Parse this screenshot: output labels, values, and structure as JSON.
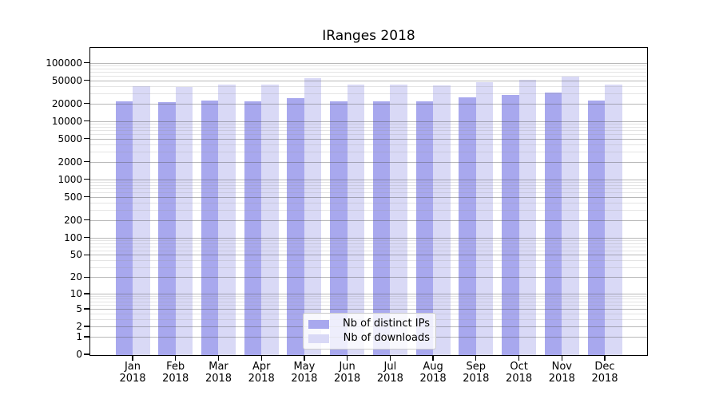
{
  "title": "IRanges 2018",
  "chart_data": {
    "type": "bar",
    "title": "IRanges 2018",
    "x_months": [
      "Jan",
      "Feb",
      "Mar",
      "Apr",
      "May",
      "Jun",
      "Jul",
      "Aug",
      "Sep",
      "Oct",
      "Nov",
      "Dec"
    ],
    "x_year": "2018",
    "series": [
      {
        "name": "Nb of distinct IPs",
        "color": "#a8a8ee",
        "values": [
          22700,
          21500,
          23500,
          22700,
          25500,
          22200,
          22200,
          22200,
          26100,
          29000,
          31500,
          23000
        ]
      },
      {
        "name": "Nb of downloads",
        "color": "#d9d9f6",
        "values": [
          40200,
          39500,
          42800,
          43700,
          56000,
          43100,
          43900,
          41800,
          47500,
          52700,
          60500,
          43100
        ]
      }
    ],
    "y_scale": "log10(1+x)",
    "y_ticks": [
      0,
      1,
      2,
      5,
      10,
      20,
      50,
      100,
      200,
      500,
      1000,
      2000,
      5000,
      10000,
      20000,
      50000,
      100000
    ],
    "y_minor_multiples": [
      3,
      4,
      6,
      7,
      8,
      9
    ],
    "ylim": [
      0,
      182000
    ],
    "grid": "on",
    "legend_position": "lower center",
    "axis_color": "#000000",
    "major_grid_color": "#b8b8b8",
    "minor_grid_color": "#e2e2e2"
  }
}
